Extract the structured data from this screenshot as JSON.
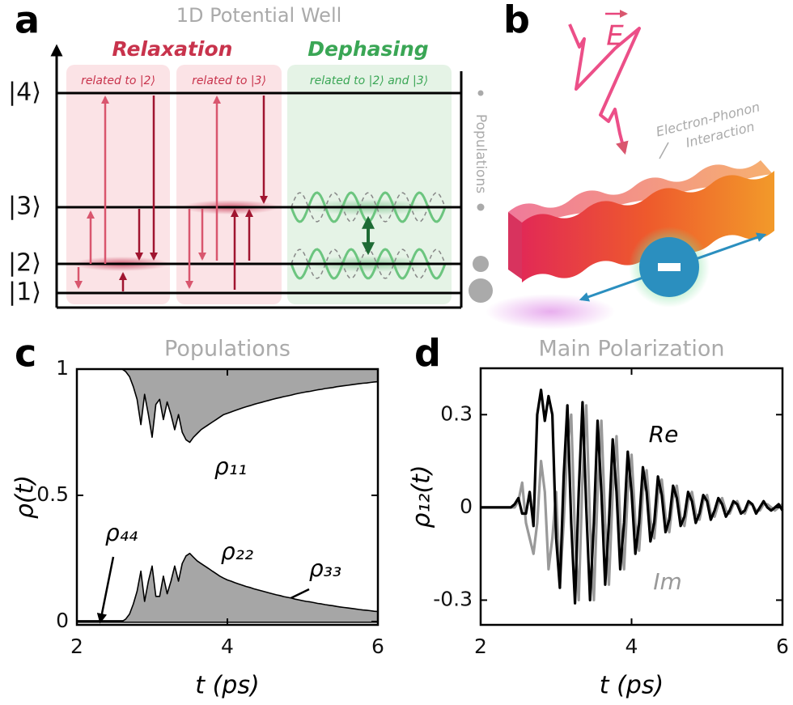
{
  "panel_a": {
    "label": "a",
    "title": "1D Potential Well",
    "relaxation": {
      "title": "Relaxation",
      "notes": [
        "related to |2⟩",
        "related to |3⟩"
      ]
    },
    "dephasing": {
      "title": "Dephasing",
      "notes": [
        "related to |2⟩ and |3⟩"
      ]
    },
    "levels": [
      "|4⟩",
      "|3⟩",
      "|2⟩",
      "|1⟩"
    ],
    "side_label": "Populations"
  },
  "panel_b": {
    "label": "b",
    "field": "E",
    "annotation": [
      "Electron-Phonon",
      "Interaction"
    ]
  },
  "chart_data": [
    {
      "type": "line",
      "panel": "c",
      "title": "Populations",
      "x_label": "t (ps)",
      "y_label": "ρ(t)",
      "xlim": [
        2,
        6
      ],
      "ylim": [
        -0.013,
        1
      ],
      "xticks": [
        2,
        4,
        6
      ],
      "yticks": [
        0,
        0.5,
        1
      ],
      "fill_color": "#a6a6a6",
      "x": [
        2,
        2.05,
        2.1,
        2.15,
        2.2,
        2.25,
        2.3,
        2.35,
        2.4,
        2.45,
        2.5,
        2.55,
        2.6,
        2.65,
        2.7,
        2.75,
        2.8,
        2.85,
        2.9,
        2.95,
        3,
        3.05,
        3.1,
        3.15,
        3.2,
        3.25,
        3.3,
        3.35,
        3.4,
        3.45,
        3.5,
        3.55,
        3.6,
        3.65,
        3.7,
        3.75,
        3.8,
        3.85,
        3.9,
        3.95,
        4,
        4.05,
        4.1,
        4.15,
        4.2,
        4.25,
        4.3,
        4.35,
        4.4,
        4.45,
        4.5,
        4.55,
        4.6,
        4.65,
        4.7,
        4.75,
        4.8,
        4.85,
        4.9,
        4.95,
        5,
        5.05,
        5.1,
        5.15,
        5.2,
        5.25,
        5.3,
        5.35,
        5.4,
        5.45,
        5.5,
        5.55,
        5.6,
        5.65,
        5.7,
        5.75,
        5.8,
        5.85,
        5.9,
        5.95,
        6
      ],
      "series": [
        {
          "name": "ρ₁₁",
          "color": "#000000",
          "fill": "above",
          "values": [
            1,
            1,
            1,
            1,
            1,
            1,
            1,
            1,
            1,
            1,
            1,
            1,
            1,
            0.99,
            0.97,
            0.93,
            0.88,
            0.78,
            0.9,
            0.82,
            0.73,
            0.86,
            0.88,
            0.8,
            0.87,
            0.82,
            0.76,
            0.82,
            0.75,
            0.72,
            0.71,
            0.73,
            0.745,
            0.76,
            0.77,
            0.78,
            0.79,
            0.8,
            0.81,
            0.82,
            0.825,
            0.83,
            0.836,
            0.841,
            0.846,
            0.851,
            0.855,
            0.86,
            0.864,
            0.868,
            0.872,
            0.876,
            0.88,
            0.884,
            0.887,
            0.891,
            0.894,
            0.897,
            0.901,
            0.904,
            0.907,
            0.91,
            0.912,
            0.915,
            0.918,
            0.92,
            0.923,
            0.925,
            0.927,
            0.93,
            0.932,
            0.934,
            0.936,
            0.938,
            0.94,
            0.942,
            0.944,
            0.945,
            0.947,
            0.949,
            0.95
          ]
        },
        {
          "name": "ρ₂₂",
          "color": "#000000",
          "fill": "below",
          "values": [
            0,
            0,
            0,
            0,
            0,
            0,
            0,
            0,
            0,
            0,
            0,
            0,
            0,
            0.01,
            0.03,
            0.07,
            0.12,
            0.2,
            0.08,
            0.16,
            0.22,
            0.1,
            0.1,
            0.18,
            0.11,
            0.16,
            0.22,
            0.16,
            0.23,
            0.26,
            0.27,
            0.255,
            0.24,
            0.23,
            0.22,
            0.21,
            0.2,
            0.19,
            0.18,
            0.172,
            0.165,
            0.16,
            0.154,
            0.149,
            0.144,
            0.139,
            0.135,
            0.13,
            0.126,
            0.122,
            0.118,
            0.114,
            0.11,
            0.106,
            0.103,
            0.099,
            0.096,
            0.093,
            0.089,
            0.086,
            0.083,
            0.08,
            0.078,
            0.075,
            0.072,
            0.07,
            0.067,
            0.065,
            0.063,
            0.06,
            0.058,
            0.056,
            0.054,
            0.052,
            0.05,
            0.048,
            0.046,
            0.045,
            0.043,
            0.041,
            0.04
          ]
        },
        {
          "name": "ρ₃₃",
          "color": "#000000",
          "values": [
            0,
            0,
            0,
            0,
            0,
            0,
            0,
            0,
            0,
            0,
            0,
            0,
            0,
            0,
            0,
            0,
            0.005,
            0.01,
            0.005,
            0.01,
            0.02,
            0.01,
            0.01,
            0.015,
            0.01,
            0.015,
            0.02,
            0.015,
            0.02,
            0.02,
            0.02,
            0.02,
            0.02,
            0.02,
            0.02,
            0.02,
            0.019,
            0.019,
            0.018,
            0.018,
            0.018,
            0.017,
            0.017,
            0.017,
            0.016,
            0.016,
            0.016,
            0.015,
            0.015,
            0.015,
            0.014,
            0.014,
            0.014,
            0.013,
            0.013,
            0.013,
            0.012,
            0.012,
            0.012,
            0.011,
            0.011,
            0.011,
            0.011,
            0.01,
            0.01,
            0.01,
            0.01,
            0.009,
            0.009,
            0.009,
            0.009,
            0.008,
            0.008,
            0.008,
            0.008,
            0.008,
            0.007,
            0.007,
            0.007,
            0.007,
            0.007
          ]
        },
        {
          "name": "ρ₄₄",
          "color": "#000000",
          "values": [
            0,
            0,
            0,
            0,
            0,
            0,
            0,
            0,
            0,
            0,
            0,
            0,
            0,
            0,
            0,
            0,
            0,
            0,
            0,
            0,
            0,
            0,
            0,
            0,
            0,
            0,
            0,
            0,
            0,
            0,
            0,
            0,
            0,
            0,
            0,
            0,
            0,
            0,
            0,
            0,
            0,
            0,
            0,
            0,
            0,
            0,
            0,
            0,
            0,
            0,
            0,
            0,
            0,
            0,
            0,
            0,
            0,
            0,
            0,
            0,
            0,
            0,
            0,
            0,
            0,
            0,
            0,
            0,
            0,
            0,
            0,
            0,
            0,
            0,
            0,
            0,
            0,
            0,
            0,
            0,
            0
          ]
        }
      ]
    },
    {
      "type": "line",
      "panel": "d",
      "title": "Main Polarization",
      "x_label": "t (ps)",
      "y_label": "ρ₁₂(t)",
      "xlim": [
        2,
        6
      ],
      "ylim": [
        -0.38,
        0.45
      ],
      "xticks": [
        2,
        4,
        6
      ],
      "yticks": [
        -0.3,
        0,
        0.3
      ],
      "x": [
        2,
        2.05,
        2.1,
        2.15,
        2.2,
        2.25,
        2.3,
        2.35,
        2.4,
        2.45,
        2.5,
        2.55,
        2.6,
        2.65,
        2.7,
        2.75,
        2.8,
        2.85,
        2.9,
        2.95,
        3,
        3.05,
        3.1,
        3.15,
        3.2,
        3.25,
        3.3,
        3.35,
        3.4,
        3.45,
        3.5,
        3.55,
        3.6,
        3.65,
        3.7,
        3.75,
        3.8,
        3.85,
        3.9,
        3.95,
        4,
        4.05,
        4.1,
        4.15,
        4.2,
        4.25,
        4.3,
        4.35,
        4.4,
        4.45,
        4.5,
        4.55,
        4.6,
        4.65,
        4.7,
        4.75,
        4.8,
        4.85,
        4.9,
        4.95,
        5,
        5.05,
        5.1,
        5.15,
        5.2,
        5.25,
        5.3,
        5.35,
        5.4,
        5.45,
        5.5,
        5.55,
        5.6,
        5.65,
        5.7,
        5.75,
        5.8,
        5.85,
        5.9,
        5.95,
        6
      ],
      "series": [
        {
          "name": "Re",
          "color": "#000000",
          "values": [
            0,
            0,
            0,
            0,
            0,
            0,
            0,
            0,
            0,
            0.01,
            0.03,
            -0.02,
            -0.02,
            0.05,
            -0.06,
            0.3,
            0.38,
            0.28,
            0.36,
            0.3,
            -0.1,
            -0.26,
            0.1,
            0.33,
            -0.05,
            -0.31,
            0.05,
            0.34,
            0,
            -0.3,
            -0.05,
            0.28,
            0.05,
            -0.25,
            -0.05,
            0.22,
            0.05,
            -0.2,
            -0.05,
            0.18,
            0.05,
            -0.15,
            -0.05,
            0.13,
            0.05,
            -0.11,
            -0.05,
            0.1,
            0.04,
            -0.08,
            -0.04,
            0.07,
            0.03,
            -0.06,
            -0.03,
            0.05,
            0.02,
            -0.05,
            -0.02,
            0.04,
            0.02,
            -0.04,
            -0.01,
            0.03,
            0.01,
            -0.03,
            -0.01,
            0.02,
            0.01,
            -0.02,
            -0.01,
            0.02,
            0.01,
            -0.02,
            0,
            0.02,
            0,
            -0.01,
            0,
            0.01,
            -0.01
          ]
        },
        {
          "name": "Im",
          "color": "#999999",
          "values": [
            0,
            0,
            0,
            0,
            0,
            0,
            0,
            0,
            0,
            0,
            0.02,
            0.08,
            -0.05,
            -0.1,
            -0.15,
            -0.05,
            0.15,
            0.05,
            -0.2,
            -0.1,
            0.05,
            -0.25,
            -0.05,
            0.2,
            0.3,
            -0.1,
            -0.3,
            0.1,
            0.33,
            -0.05,
            -0.3,
            0.05,
            0.28,
            -0.05,
            -0.25,
            0.05,
            0.23,
            -0.05,
            -0.2,
            0.05,
            0.17,
            -0.05,
            -0.14,
            0.05,
            0.12,
            -0.04,
            -0.1,
            0.04,
            0.09,
            -0.03,
            -0.08,
            0.03,
            0.07,
            -0.03,
            -0.06,
            0.02,
            0.05,
            -0.02,
            -0.04,
            0.02,
            0.04,
            -0.02,
            -0.03,
            0.01,
            0.03,
            -0.01,
            -0.02,
            0.01,
            0.02,
            -0.01,
            -0.02,
            0.01,
            0.01,
            -0.01,
            -0.01,
            0.01,
            0.01,
            0,
            -0.01,
            0,
            0.01
          ]
        }
      ]
    }
  ]
}
